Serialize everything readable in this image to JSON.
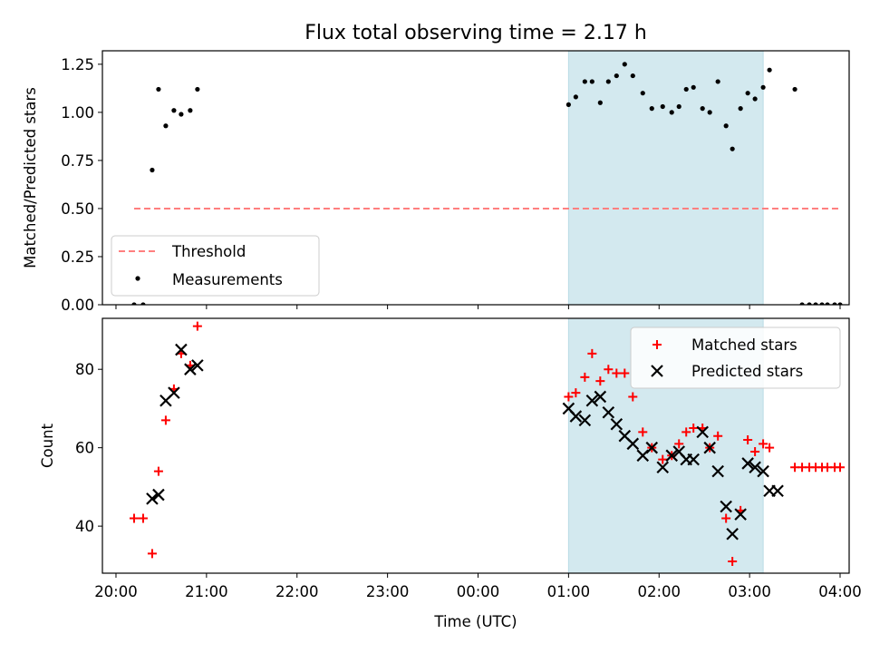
{
  "chart_data": [
    {
      "type": "scatter",
      "title": "Flux total observing time = 2.17 h",
      "xlabel": "",
      "ylabel": "Matched/Predicted stars",
      "xlim": [
        -0.15,
        8.1
      ],
      "ylim": [
        0,
        1.32
      ],
      "yticks": [
        0.0,
        0.25,
        0.5,
        0.75,
        1.0,
        1.25
      ],
      "ytick_labels": [
        "0.00",
        "0.25",
        "0.50",
        "0.75",
        "1.00",
        "1.25"
      ],
      "highlight_span": [
        5.0,
        7.15
      ],
      "highlight_color": "#d3e9ef",
      "threshold": {
        "name": "Threshold",
        "value": 0.5,
        "x": [
          0.2,
          8.0
        ],
        "color": "#ff7f7f"
      },
      "legend": {
        "placement": "lower-left",
        "entries": [
          "Threshold",
          "Measurements"
        ]
      },
      "series": [
        {
          "name": "Measurements",
          "color": "#000000",
          "x": [
            0.2,
            0.3,
            0.4,
            0.47,
            0.55,
            0.64,
            0.72,
            0.82,
            0.9,
            5.0,
            5.08,
            5.18,
            5.26,
            5.35,
            5.44,
            5.53,
            5.62,
            5.71,
            5.82,
            5.92,
            6.04,
            6.14,
            6.22,
            6.3,
            6.38,
            6.48,
            6.56,
            6.65,
            6.74,
            6.81,
            6.9,
            6.98,
            7.06,
            7.15,
            7.22,
            7.5,
            7.58,
            7.66,
            7.73,
            7.8,
            7.86,
            7.94,
            8.0
          ],
          "y": [
            0.0,
            0.0,
            0.7,
            1.12,
            0.93,
            1.01,
            0.99,
            1.01,
            1.12,
            1.04,
            1.08,
            1.16,
            1.16,
            1.05,
            1.16,
            1.19,
            1.25,
            1.19,
            1.1,
            1.02,
            1.03,
            1.0,
            1.03,
            1.12,
            1.13,
            1.02,
            1.0,
            1.16,
            0.93,
            0.81,
            1.02,
            1.1,
            1.07,
            1.13,
            1.22,
            1.12,
            0.0,
            0.0,
            0.0,
            0.0,
            0.0,
            0.0,
            0.0
          ]
        }
      ]
    },
    {
      "type": "scatter",
      "title": "",
      "xlabel": "Time (UTC)",
      "ylabel": "Count",
      "xlim": [
        -0.15,
        8.1
      ],
      "ylim": [
        28,
        93
      ],
      "yticks": [
        40,
        60,
        80
      ],
      "ytick_labels": [
        "40",
        "60",
        "80"
      ],
      "xticks": [
        0,
        1,
        2,
        3,
        4,
        5,
        6,
        7,
        8
      ],
      "xtick_labels": [
        "20:00",
        "21:00",
        "22:00",
        "23:00",
        "00:00",
        "01:00",
        "02:00",
        "03:00",
        "04:00"
      ],
      "highlight_span": [
        5.0,
        7.15
      ],
      "highlight_color": "#d3e9ef",
      "legend": {
        "placement": "top-right",
        "entries": [
          "Matched stars",
          "Predicted stars"
        ]
      },
      "series": [
        {
          "name": "Matched stars",
          "marker": "plus",
          "color": "#ff0000",
          "x": [
            0.2,
            0.3,
            0.4,
            0.47,
            0.55,
            0.64,
            0.72,
            0.82,
            0.9,
            5.0,
            5.08,
            5.18,
            5.26,
            5.35,
            5.44,
            5.53,
            5.62,
            5.71,
            5.82,
            5.92,
            6.04,
            6.14,
            6.22,
            6.3,
            6.38,
            6.48,
            6.56,
            6.65,
            6.74,
            6.81,
            6.9,
            6.98,
            7.06,
            7.15,
            7.22,
            7.5,
            7.58,
            7.66,
            7.73,
            7.8,
            7.86,
            7.94,
            8.0
          ],
          "y": [
            42,
            42,
            33,
            54,
            67,
            75,
            84,
            81,
            91,
            73,
            74,
            78,
            84,
            77,
            80,
            79,
            79,
            73,
            64,
            60,
            57,
            58,
            61,
            64,
            65,
            65,
            60,
            63,
            42,
            31,
            44,
            62,
            59,
            61,
            60,
            55,
            55,
            55,
            55,
            55,
            55,
            55,
            55
          ]
        },
        {
          "name": "Predicted stars",
          "marker": "x",
          "color": "#000000",
          "x": [
            0.4,
            0.47,
            0.55,
            0.64,
            0.72,
            0.82,
            0.9,
            5.0,
            5.08,
            5.18,
            5.26,
            5.35,
            5.44,
            5.53,
            5.62,
            5.71,
            5.82,
            5.92,
            6.04,
            6.14,
            6.22,
            6.3,
            6.38,
            6.48,
            6.56,
            6.65,
            6.74,
            6.81,
            6.9,
            6.98,
            7.06,
            7.15,
            7.22,
            7.31
          ],
          "y": [
            47,
            48,
            72,
            74,
            85,
            80,
            81,
            70,
            68,
            67,
            72,
            73,
            69,
            66,
            63,
            61,
            58,
            60,
            55,
            58,
            59,
            57,
            57,
            64,
            60,
            54,
            45,
            38,
            43,
            56,
            55,
            54,
            49,
            49
          ]
        }
      ]
    }
  ]
}
